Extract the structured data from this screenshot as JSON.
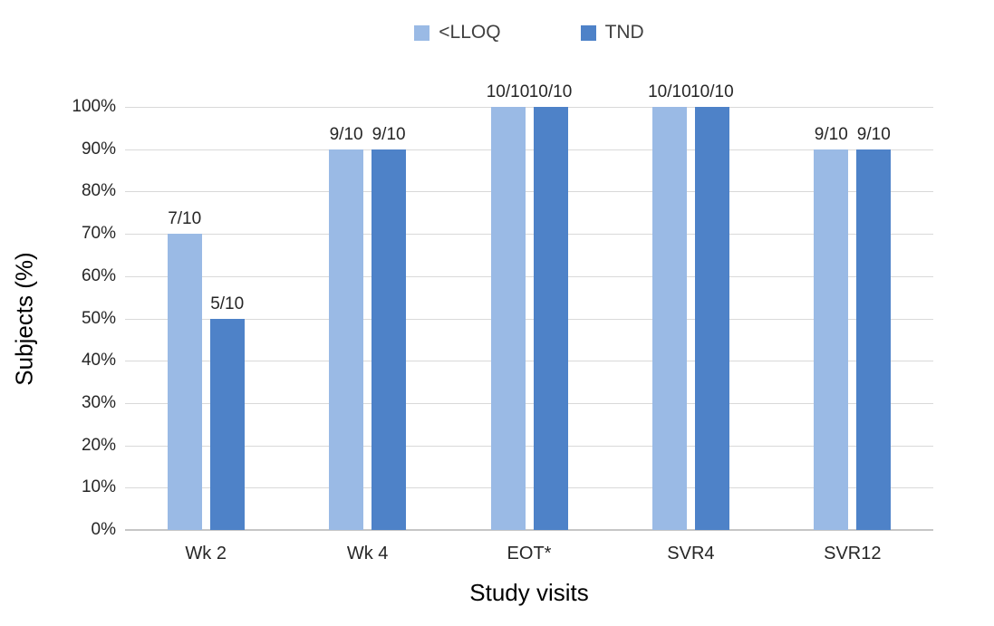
{
  "chart_data": {
    "type": "bar",
    "title": "",
    "xlabel": "Study visits",
    "ylabel": "Subjects (%)",
    "categories": [
      "Wk 2",
      "Wk 4",
      "EOT*",
      "SVR4",
      "SVR12"
    ],
    "series": [
      {
        "name": "<LLOQ",
        "color": "#9ABAE5",
        "values": [
          70,
          90,
          100,
          100,
          90
        ],
        "labels": [
          "7/10",
          "9/10",
          "10/10",
          "10/10",
          "9/10"
        ]
      },
      {
        "name": "TND",
        "color": "#4E82C8",
        "values": [
          50,
          90,
          100,
          100,
          90
        ],
        "labels": [
          "5/10",
          "9/10",
          "10/10",
          "10/10",
          "9/10"
        ]
      }
    ],
    "ylim": [
      0,
      100
    ],
    "ytick_step": 10,
    "ytick_suffix": "%",
    "grid": true,
    "legend_position": "top"
  },
  "colors": {
    "grid": "#D9D9D9",
    "axis": "#C6C6C6",
    "tick_text": "#262626",
    "title_text": "#000000",
    "background": "#FFFFFF"
  }
}
